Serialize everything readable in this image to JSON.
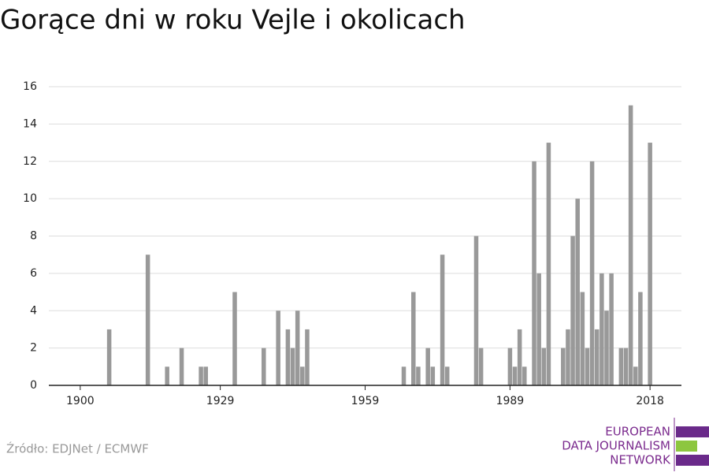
{
  "chart_data": {
    "type": "bar",
    "title": "Gorące dni w roku Vejle i okolicach",
    "source": "Źródło: EDJNet / ECMWF",
    "logo": [
      "EUROPEAN",
      "DATA JOURNALISM",
      "NETWORK"
    ],
    "color": "#999999",
    "x": [
      1906,
      1914,
      1918,
      1921,
      1925,
      1926,
      1932,
      1938,
      1941,
      1943,
      1944,
      1945,
      1946,
      1947,
      1967,
      1969,
      1970,
      1972,
      1973,
      1975,
      1976,
      1982,
      1983,
      1989,
      1990,
      1991,
      1992,
      1994,
      1995,
      1996,
      1997,
      2000,
      2001,
      2002,
      2003,
      2004,
      2005,
      2006,
      2007,
      2008,
      2009,
      2010,
      2012,
      2013,
      2014,
      2015,
      2016,
      2018
    ],
    "values": [
      3,
      7,
      1,
      2,
      1,
      1,
      5,
      2,
      4,
      3,
      2,
      4,
      1,
      3,
      1,
      5,
      1,
      2,
      1,
      7,
      1,
      8,
      2,
      2,
      1,
      3,
      1,
      12,
      6,
      2,
      13,
      2,
      3,
      8,
      10,
      5,
      2,
      12,
      3,
      6,
      4,
      6,
      2,
      2,
      15,
      1,
      5,
      13
    ],
    "xlim": [
      1893.5,
      2024.5
    ],
    "xticks": [
      1900,
      1929,
      1959,
      1989,
      2018
    ],
    "ylim": [
      0,
      16
    ],
    "yticks": [
      0,
      2,
      4,
      6,
      8,
      10,
      12,
      14,
      16
    ],
    "grid": true
  }
}
